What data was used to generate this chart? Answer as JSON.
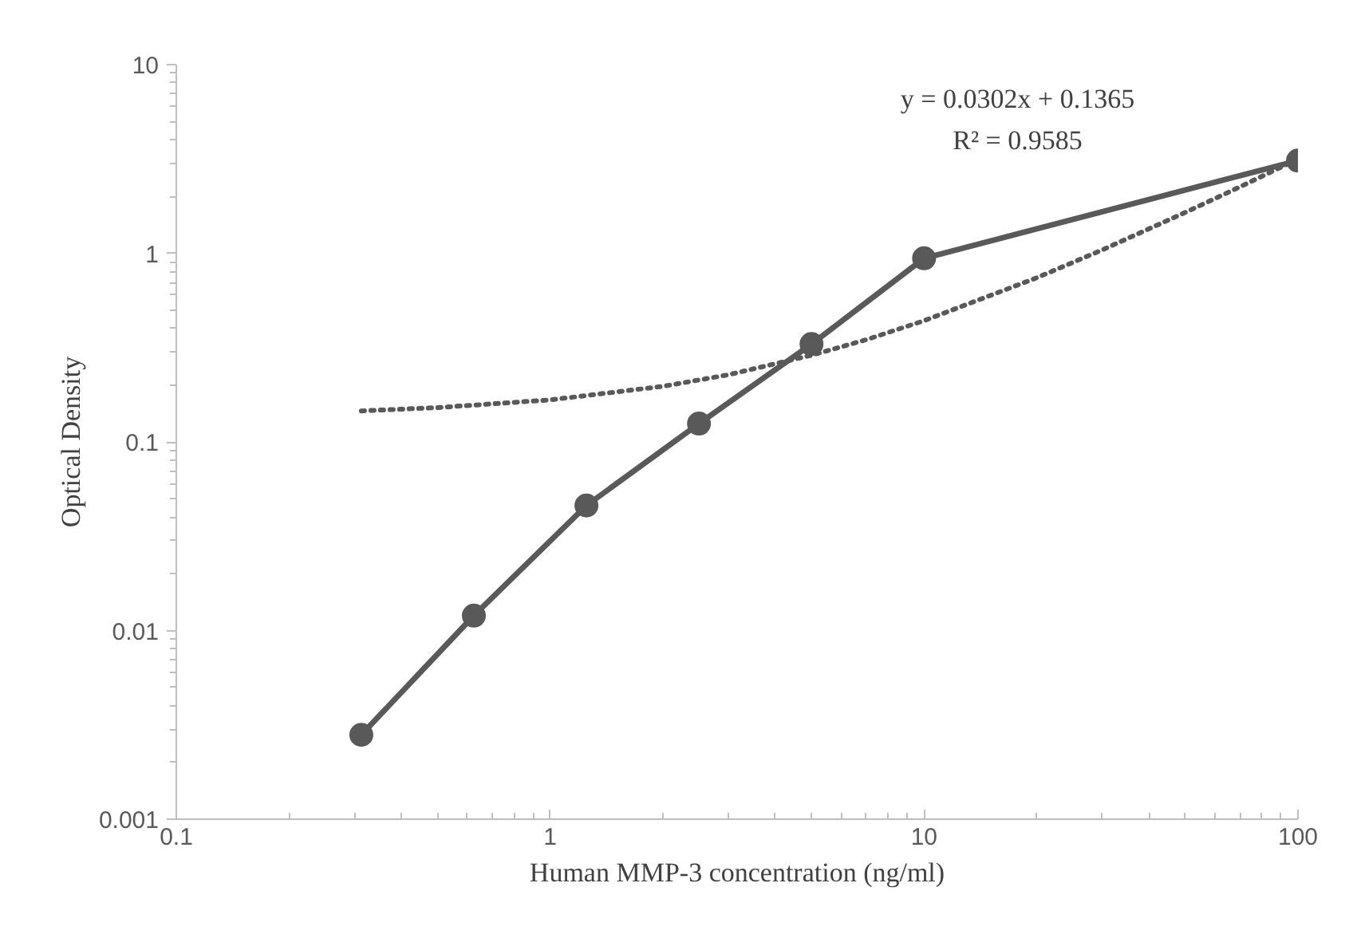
{
  "chart_data": {
    "type": "line",
    "xlabel": "Human MMP-3 concentration (ng/ml)",
    "ylabel": "Optical Density",
    "log": "xy",
    "grid": false,
    "xlim": [
      0.1,
      100
    ],
    "ylim": [
      0.001,
      10
    ],
    "xticks": [
      0.1,
      1,
      10,
      100
    ],
    "yticks": [
      0.001,
      0.01,
      0.1,
      1,
      10
    ],
    "series": [
      {
        "color": "#595959",
        "marker": "circle",
        "line_style": "solid",
        "x": [
          0.3125,
          0.625,
          1.25,
          2.5,
          5,
          10,
          100
        ],
        "values": [
          0.0028,
          0.012,
          0.046,
          0.125,
          0.33,
          0.94,
          3.1
        ]
      },
      {
        "color": "#595959",
        "marker": "none",
        "line_style": "dotted",
        "x": [
          0.3125,
          0.5,
          1,
          2,
          3,
          5,
          7,
          10,
          20,
          30,
          50,
          70,
          100
        ],
        "values": [
          0.146,
          0.152,
          0.167,
          0.197,
          0.227,
          0.288,
          0.348,
          0.439,
          0.741,
          1.043,
          1.647,
          2.25,
          3.157
        ]
      }
    ],
    "annotations": [
      "y = 0.0302x + 0.1365",
      "R² = 0.9585"
    ]
  }
}
